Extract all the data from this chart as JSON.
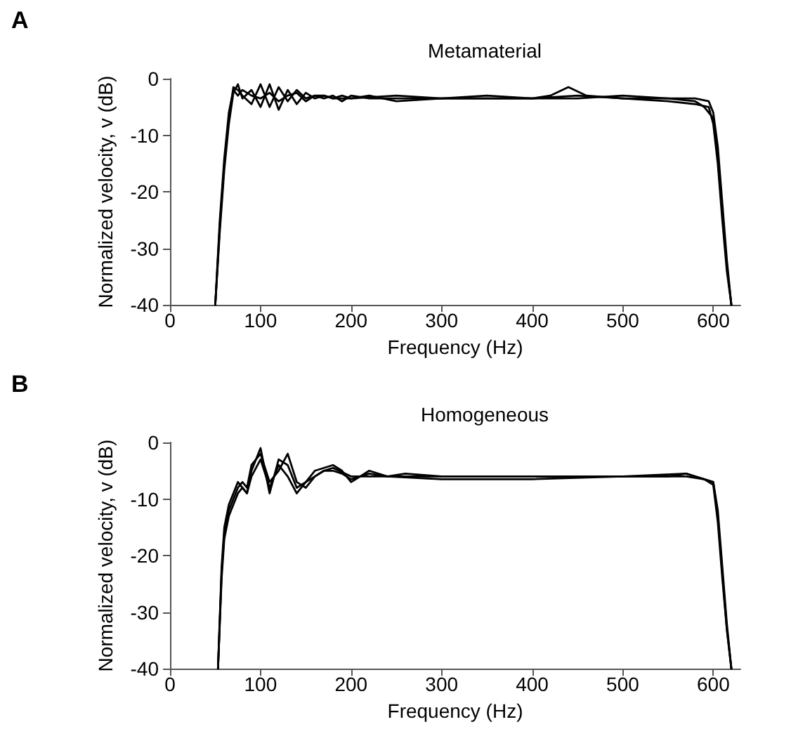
{
  "chart_data": [
    {
      "type": "line",
      "title": "Metamaterial",
      "annotations": [
        "A"
      ],
      "xlabel": "Frequency (Hz)",
      "ylabel": "Normalized velocity, v (dB)",
      "xlim": [
        0,
        630
      ],
      "xticks": [
        0,
        100,
        200,
        300,
        400,
        500,
        600
      ],
      "ylim": [
        -40,
        0
      ],
      "yticks": [
        -40,
        -30,
        -20,
        -10,
        0
      ],
      "grid": false,
      "marker": "none",
      "line_style": "solid",
      "series": [
        {
          "color": "#000000",
          "x": [
            50,
            55,
            60,
            65,
            70,
            75,
            80,
            90,
            100,
            110,
            120,
            130,
            140,
            150,
            160,
            170,
            180,
            190,
            200,
            220,
            250,
            300,
            350,
            400,
            420,
            440,
            460,
            500,
            550,
            580,
            595,
            600,
            605,
            610,
            615,
            620
          ],
          "values": [
            -40,
            -26,
            -15,
            -7,
            -1.5,
            -2,
            -3,
            -4.5,
            -1,
            -5,
            -1.5,
            -4,
            -2,
            -3.5,
            -3,
            -3.5,
            -3,
            -4,
            -3,
            -3.5,
            -3.5,
            -3.5,
            -3.5,
            -3.5,
            -3,
            -1.5,
            -3,
            -3.5,
            -3.5,
            -3.5,
            -4,
            -6,
            -12,
            -22,
            -32,
            -40
          ]
        },
        {
          "color": "#000000",
          "x": [
            50,
            55,
            60,
            65,
            70,
            75,
            80,
            90,
            100,
            110,
            120,
            130,
            140,
            150,
            160,
            170,
            180,
            190,
            200,
            220,
            250,
            300,
            350,
            400,
            450,
            500,
            550,
            580,
            590,
            600,
            605,
            610,
            615,
            620
          ],
          "values": [
            -40,
            -27,
            -16,
            -8,
            -2.5,
            -1,
            -3.5,
            -2,
            -5,
            -1,
            -5.5,
            -2,
            -4.5,
            -2.5,
            -3.5,
            -3,
            -3.5,
            -3,
            -3.5,
            -3,
            -4,
            -3.5,
            -3,
            -3.5,
            -3.5,
            -3,
            -3.5,
            -4,
            -5,
            -7,
            -14,
            -24,
            -33,
            -40
          ]
        },
        {
          "color": "#000000",
          "x": [
            50,
            55,
            60,
            65,
            70,
            75,
            80,
            90,
            100,
            110,
            120,
            130,
            140,
            150,
            160,
            170,
            180,
            200,
            250,
            300,
            350,
            400,
            450,
            500,
            550,
            580,
            595,
            600,
            605,
            610,
            615,
            620
          ],
          "values": [
            -40,
            -25,
            -14,
            -6,
            -2,
            -3,
            -2,
            -3,
            -3.5,
            -2.5,
            -4,
            -3,
            -2.5,
            -4,
            -3,
            -3,
            -3.5,
            -3.5,
            -3,
            -3.5,
            -3.5,
            -3.5,
            -3,
            -3.5,
            -4,
            -4.5,
            -5,
            -8,
            -15,
            -25,
            -34,
            -40
          ]
        }
      ]
    },
    {
      "type": "line",
      "title": "Homogeneous",
      "annotations": [
        "B"
      ],
      "xlabel": "Frequency (Hz)",
      "ylabel": "Normalized velocity, v (dB)",
      "xlim": [
        0,
        630
      ],
      "xticks": [
        0,
        100,
        200,
        300,
        400,
        500,
        600
      ],
      "ylim": [
        -40,
        0
      ],
      "yticks": [
        -40,
        -30,
        -20,
        -10,
        0
      ],
      "grid": false,
      "marker": "none",
      "line_style": "solid",
      "series": [
        {
          "color": "#000000",
          "x": [
            53,
            57,
            60,
            65,
            70,
            75,
            80,
            85,
            90,
            100,
            110,
            120,
            130,
            140,
            150,
            160,
            170,
            180,
            190,
            200,
            210,
            220,
            240,
            260,
            300,
            350,
            400,
            450,
            500,
            550,
            570,
            590,
            600,
            605,
            610,
            615,
            620
          ],
          "values": [
            -40,
            -22,
            -15,
            -11,
            -9,
            -7,
            -8,
            -9,
            -5,
            -1,
            -9,
            -3,
            -4,
            -8,
            -7,
            -5,
            -4.5,
            -4,
            -5,
            -7,
            -6,
            -5,
            -6,
            -5.5,
            -6,
            -6,
            -6,
            -6,
            -6,
            -6,
            -5.5,
            -6.5,
            -7,
            -12,
            -22,
            -32,
            -40
          ]
        },
        {
          "color": "#000000",
          "x": [
            53,
            57,
            60,
            65,
            70,
            75,
            80,
            85,
            90,
            100,
            110,
            120,
            130,
            140,
            150,
            160,
            170,
            180,
            190,
            200,
            220,
            240,
            300,
            400,
            500,
            570,
            590,
            600,
            605,
            610,
            615,
            620
          ],
          "values": [
            -40,
            -23,
            -16,
            -12,
            -10,
            -8,
            -7,
            -8,
            -4,
            -2,
            -7,
            -5,
            -2,
            -7,
            -8,
            -6,
            -5,
            -5,
            -5.5,
            -6.5,
            -5.5,
            -6,
            -6,
            -6,
            -6,
            -6,
            -6.5,
            -7.5,
            -14,
            -24,
            -33,
            -40
          ]
        },
        {
          "color": "#000000",
          "x": [
            53,
            57,
            60,
            65,
            70,
            75,
            80,
            85,
            90,
            100,
            110,
            120,
            130,
            140,
            150,
            160,
            170,
            180,
            200,
            240,
            300,
            400,
            500,
            570,
            590,
            600,
            605,
            610,
            615,
            620
          ],
          "values": [
            -40,
            -24,
            -17,
            -13,
            -11,
            -9,
            -8,
            -9,
            -6,
            -3,
            -8,
            -4,
            -6,
            -9,
            -7,
            -6,
            -5,
            -4.5,
            -6,
            -6,
            -6.5,
            -6.5,
            -6,
            -5.5,
            -6.5,
            -7,
            -13,
            -23,
            -33,
            -40
          ]
        }
      ]
    }
  ]
}
